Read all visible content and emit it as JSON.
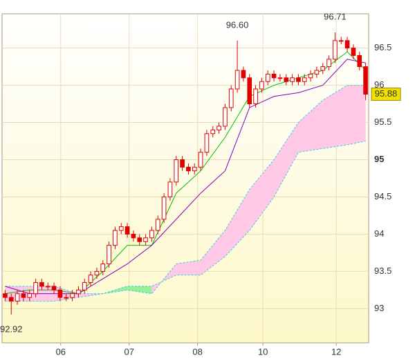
{
  "chart_data": {
    "type": "candlestick",
    "xlim": [
      -0.5,
      59.5
    ],
    "xticks": [
      {
        "value": 9.1,
        "label": "06"
      },
      {
        "value": 20.3,
        "label": "07"
      },
      {
        "value": 31.5,
        "label": "08"
      },
      {
        "value": 42.2,
        "label": "10"
      },
      {
        "value": 54.2,
        "label": "12"
      }
    ],
    "ylim": [
      92.54,
      96.96
    ],
    "yticks": [
      93,
      93.5,
      94,
      94.5,
      95,
      95.5,
      96,
      96.5
    ],
    "bold_ytick": 95,
    "grid": true,
    "candle_color": "#e00000",
    "open": [
      93.2,
      93.15,
      93.1,
      93.2,
      93.15,
      93.2,
      93.35,
      93.3,
      93.3,
      93.25,
      93.15,
      93.15,
      93.2,
      93.25,
      93.35,
      93.45,
      93.5,
      93.6,
      93.85,
      94.05,
      94.1,
      94.0,
      93.95,
      93.9,
      93.95,
      94.05,
      94.2,
      94.5,
      94.7,
      95.0,
      94.9,
      94.85,
      94.9,
      95.1,
      95.35,
      95.4,
      95.45,
      95.7,
      95.95,
      96.2,
      96.1,
      95.75,
      95.95,
      96.05,
      96.15,
      96.1,
      96.1,
      96.05,
      96.1,
      96.05,
      96.1,
      96.15,
      96.2,
      96.25,
      96.35,
      96.6,
      96.6,
      96.5,
      96.4,
      96.25
    ],
    "high": [
      93.25,
      93.2,
      93.25,
      93.25,
      93.25,
      93.4,
      93.4,
      93.35,
      93.35,
      93.3,
      93.2,
      93.25,
      93.3,
      93.4,
      93.5,
      93.55,
      93.65,
      93.9,
      94.1,
      94.15,
      94.15,
      94.05,
      94.0,
      94.0,
      94.1,
      94.25,
      94.55,
      94.75,
      95.05,
      95.05,
      94.95,
      94.95,
      95.15,
      95.4,
      95.45,
      95.5,
      95.75,
      96.0,
      96.6,
      96.25,
      96.15,
      96.0,
      96.1,
      96.2,
      96.2,
      96.15,
      96.15,
      96.15,
      96.15,
      96.15,
      96.2,
      96.25,
      96.3,
      96.4,
      96.71,
      96.65,
      96.65,
      96.55,
      96.45,
      96.3
    ],
    "low": [
      93.1,
      92.92,
      93.05,
      93.1,
      93.1,
      93.15,
      93.25,
      93.25,
      93.2,
      93.1,
      93.1,
      93.1,
      93.15,
      93.2,
      93.3,
      93.4,
      93.45,
      93.55,
      93.8,
      94.0,
      93.95,
      93.9,
      93.85,
      93.85,
      93.9,
      94.0,
      94.15,
      94.45,
      94.65,
      94.85,
      94.8,
      94.8,
      94.85,
      95.05,
      95.3,
      95.35,
      95.4,
      95.65,
      95.9,
      96.05,
      95.7,
      95.7,
      95.9,
      96.0,
      96.05,
      96.05,
      96.0,
      96.0,
      96.0,
      96.0,
      96.05,
      96.1,
      96.15,
      96.2,
      96.3,
      96.55,
      96.45,
      96.35,
      96.2,
      95.8
    ],
    "close": [
      93.15,
      93.1,
      93.2,
      93.15,
      93.2,
      93.35,
      93.3,
      93.3,
      93.25,
      93.15,
      93.15,
      93.2,
      93.25,
      93.35,
      93.45,
      93.5,
      93.6,
      93.85,
      94.05,
      94.1,
      94.0,
      93.95,
      93.9,
      93.95,
      94.05,
      94.2,
      94.5,
      94.7,
      95.0,
      94.9,
      94.85,
      94.9,
      95.1,
      95.35,
      95.4,
      95.45,
      95.7,
      95.95,
      96.2,
      96.1,
      95.75,
      95.95,
      96.05,
      96.15,
      96.1,
      96.1,
      96.05,
      96.1,
      96.05,
      96.1,
      96.15,
      96.2,
      96.25,
      96.35,
      96.6,
      96.6,
      96.5,
      96.4,
      96.25,
      95.88
    ],
    "line_x": [
      0,
      4,
      8,
      12,
      16,
      20,
      24,
      28,
      32,
      36,
      40,
      44,
      48,
      52,
      56,
      59
    ],
    "lines": [
      {
        "color": "#00c000",
        "values": [
          93.2,
          93.25,
          93.25,
          93.2,
          93.5,
          93.85,
          93.85,
          94.55,
          94.85,
          95.3,
          95.85,
          96.0,
          96.1,
          96.2,
          96.45,
          96.2
        ]
      },
      {
        "color": "#8000c0",
        "values": [
          93.3,
          93.2,
          93.2,
          93.2,
          93.4,
          93.6,
          93.85,
          94.2,
          94.55,
          94.85,
          95.7,
          95.85,
          95.9,
          96.0,
          96.35,
          96.3
        ]
      }
    ],
    "span_color": "#40c8e8",
    "span_a": [
      93.1,
      93.1,
      93.1,
      93.15,
      93.2,
      93.3,
      93.3,
      93.45,
      93.45,
      93.7,
      94.05,
      94.5,
      95.1,
      95.15,
      95.2,
      95.25
    ],
    "span_b": [
      93.3,
      93.3,
      93.3,
      93.2,
      93.2,
      93.25,
      93.2,
      93.6,
      93.65,
      94.05,
      94.6,
      95.0,
      95.5,
      95.8,
      96.0,
      96.0
    ],
    "cloud_up_color": "#98f098",
    "cloud_down_color": "#ffc8e6",
    "annotations": [
      {
        "x": 38,
        "value": 96.6,
        "label": "96.60",
        "position": "above"
      },
      {
        "x": 54,
        "value": 96.71,
        "label": "96.71",
        "position": "above"
      },
      {
        "x": 1,
        "value": 92.92,
        "label": "92.92",
        "position": "below"
      }
    ],
    "last_price": 95.88
  }
}
